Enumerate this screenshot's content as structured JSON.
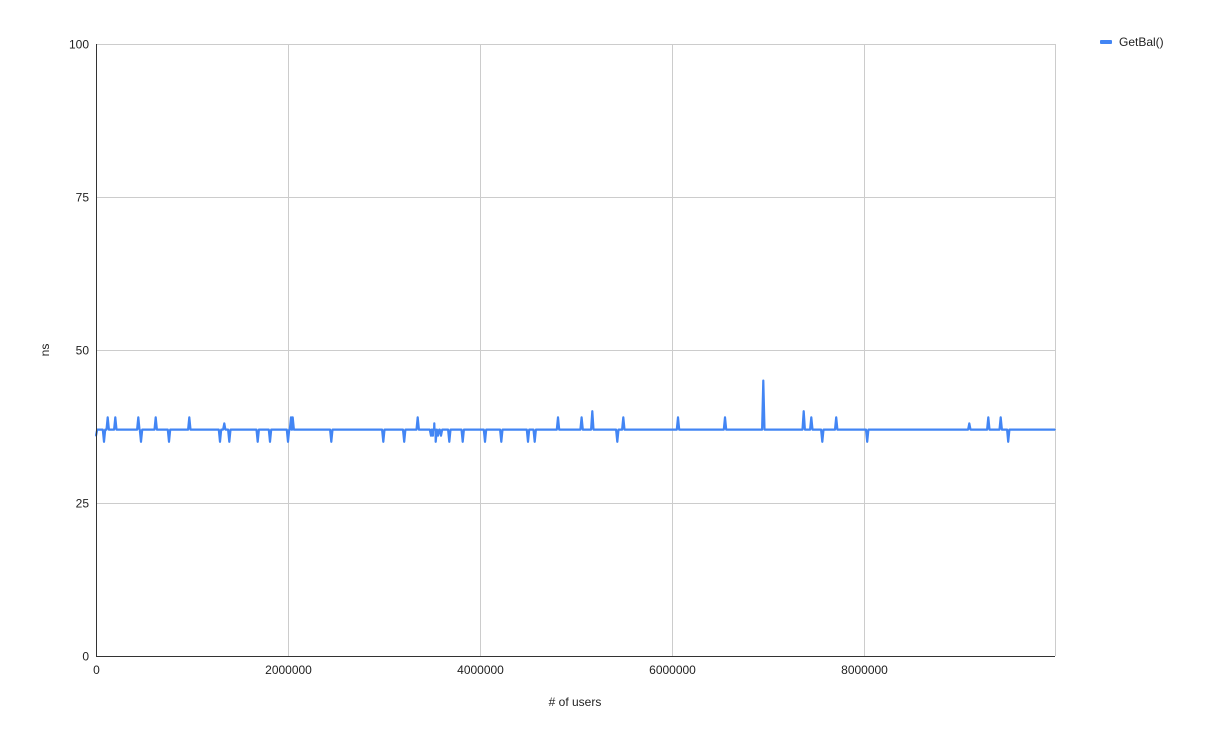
{
  "chart_data": {
    "type": "line",
    "title": "",
    "xlabel": "# of users",
    "ylabel": "ns",
    "xlim": [
      0,
      9990000
    ],
    "ylim": [
      0,
      100
    ],
    "x_ticks": [
      "0",
      "2000000",
      "4000000",
      "6000000",
      "8000000"
    ],
    "y_ticks": [
      "0",
      "25",
      "50",
      "75",
      "100"
    ],
    "grid": true,
    "legend_placement": "top-right",
    "baseline": 37,
    "series": [
      {
        "name": "GetBal()",
        "color": "#4285F4",
        "points": [
          [
            0,
            36
          ],
          [
            83000,
            35
          ],
          [
            122000,
            39
          ],
          [
            201000,
            39
          ],
          [
            441000,
            39
          ],
          [
            469000,
            35
          ],
          [
            622000,
            39
          ],
          [
            760000,
            35
          ],
          [
            972000,
            39
          ],
          [
            1292000,
            35
          ],
          [
            1336000,
            38
          ],
          [
            1389000,
            35
          ],
          [
            1684000,
            35
          ],
          [
            1813000,
            35
          ],
          [
            2000000,
            35
          ],
          [
            2031000,
            39
          ],
          [
            2049000,
            39
          ],
          [
            2451000,
            35
          ],
          [
            2993000,
            35
          ],
          [
            3211000,
            35
          ],
          [
            3351000,
            39
          ],
          [
            3490000,
            36
          ],
          [
            3510000,
            36
          ],
          [
            3524000,
            38
          ],
          [
            3539000,
            35
          ],
          [
            3563000,
            36
          ],
          [
            3594000,
            36
          ],
          [
            3680000,
            35
          ],
          [
            3820000,
            35
          ],
          [
            4052000,
            35
          ],
          [
            4222000,
            35
          ],
          [
            4500000,
            35
          ],
          [
            4570000,
            35
          ],
          [
            4813000,
            39
          ],
          [
            5059000,
            39
          ],
          [
            5170000,
            40
          ],
          [
            5430000,
            35
          ],
          [
            5493000,
            39
          ],
          [
            6063000,
            39
          ],
          [
            6552000,
            39
          ],
          [
            6951000,
            45
          ],
          [
            7372000,
            40
          ],
          [
            7451000,
            39
          ],
          [
            7566000,
            35
          ],
          [
            7711000,
            39
          ],
          [
            8034000,
            35
          ],
          [
            9097000,
            38
          ],
          [
            9295000,
            39
          ],
          [
            9424000,
            39
          ],
          [
            9503000,
            35
          ],
          [
            9990000,
            37
          ]
        ]
      }
    ]
  }
}
